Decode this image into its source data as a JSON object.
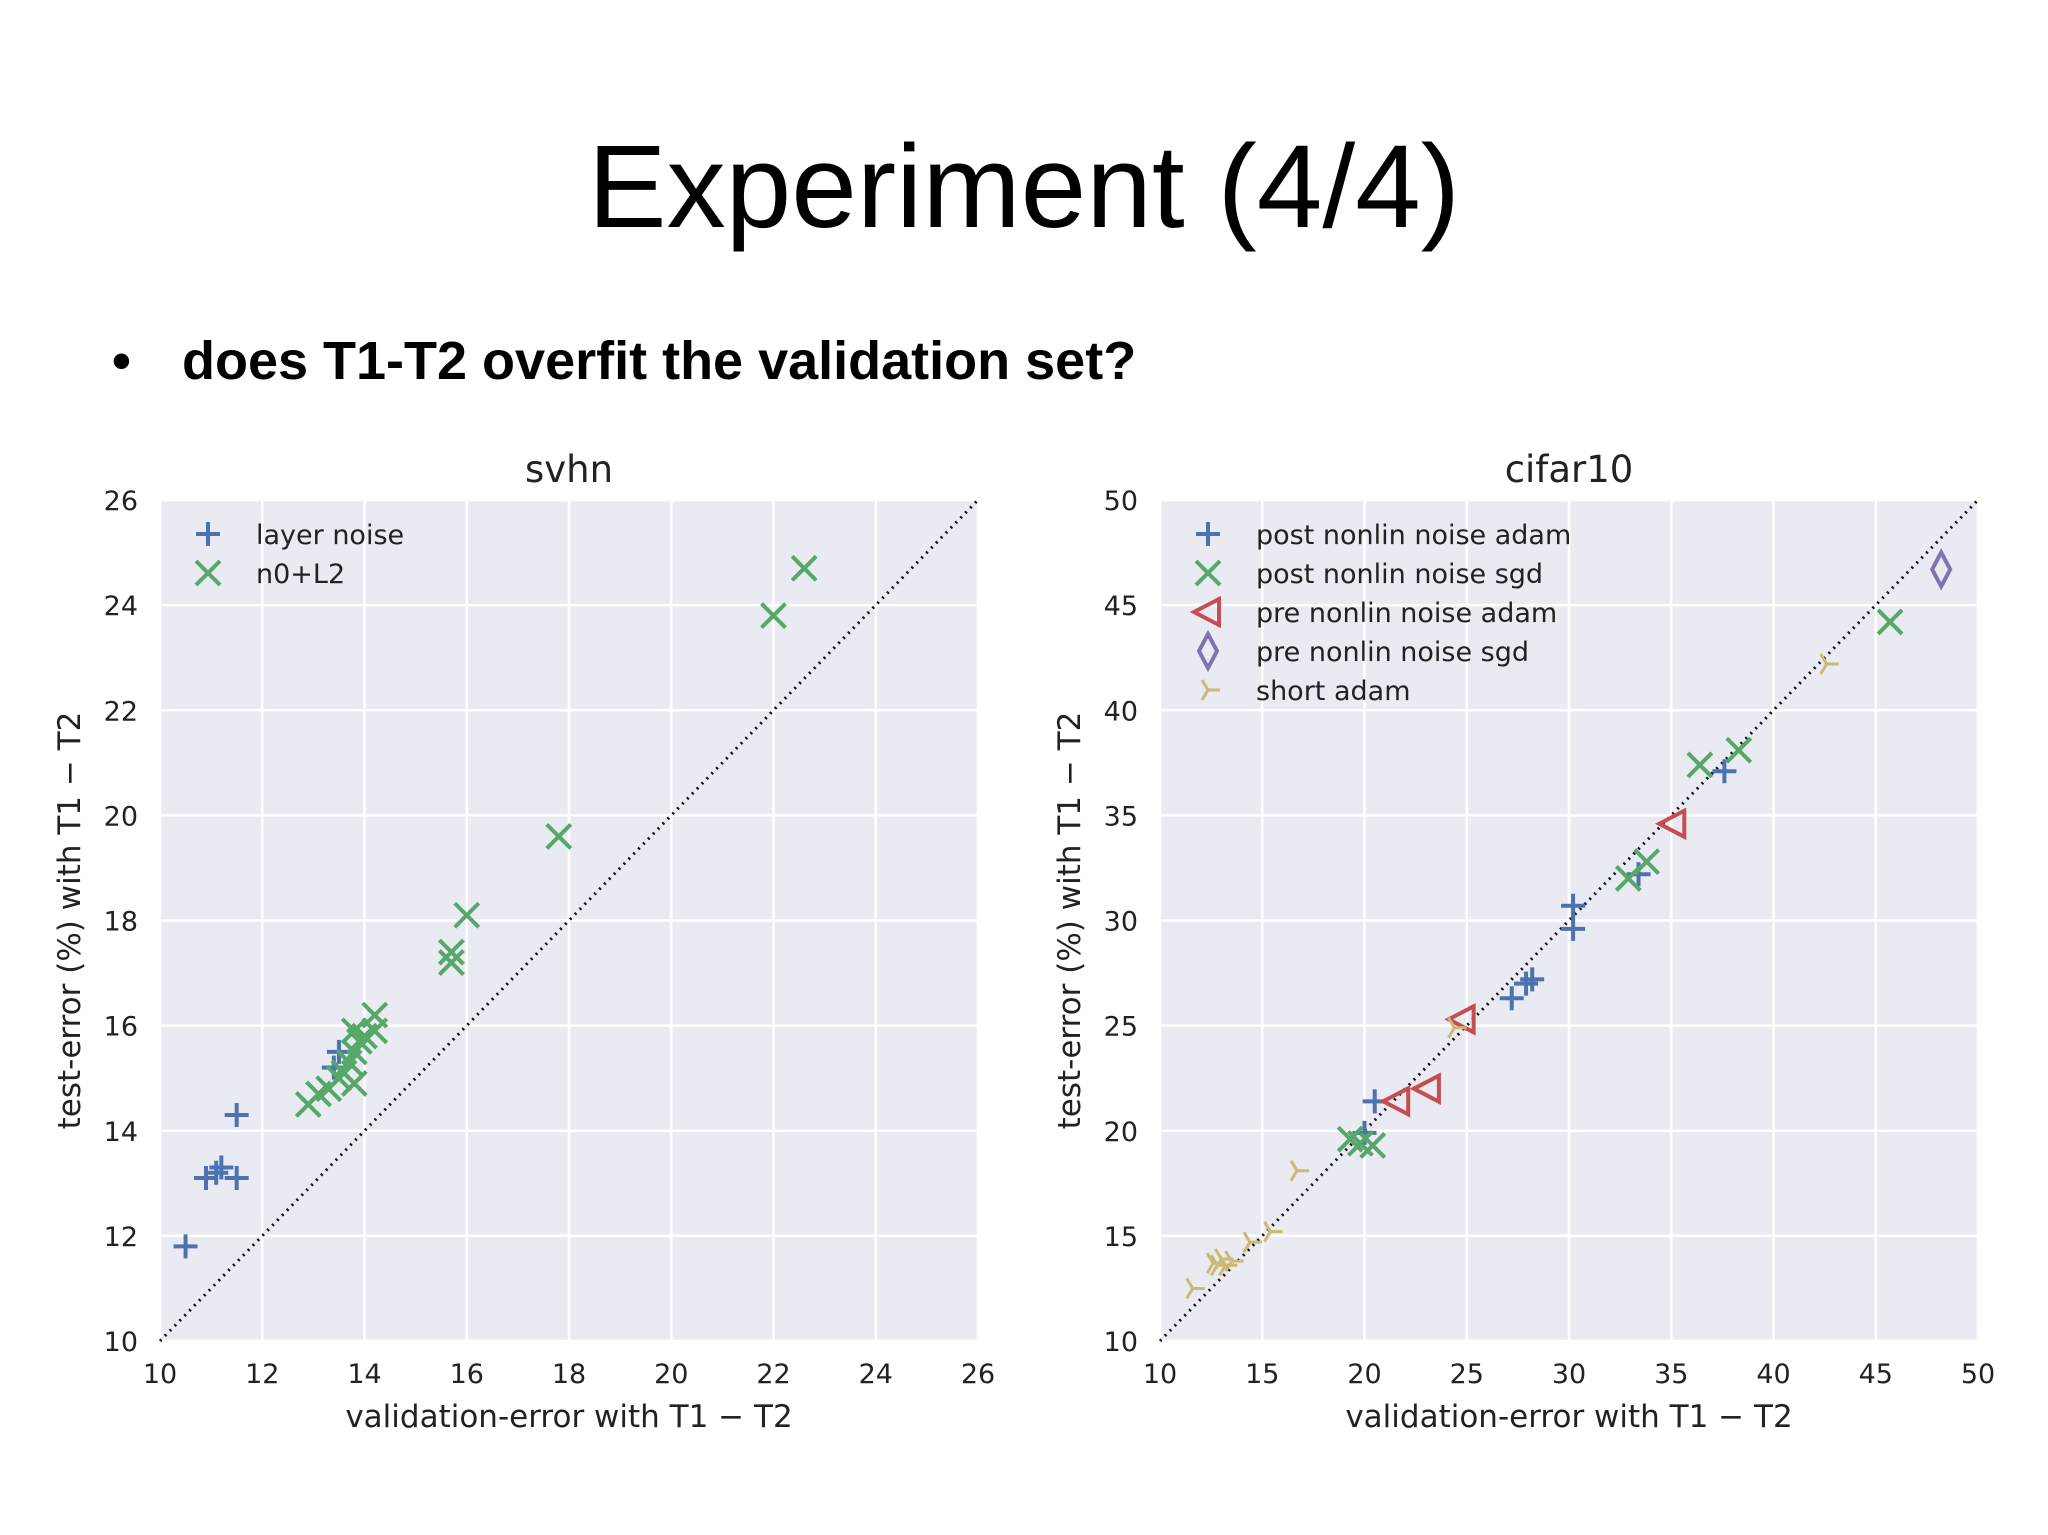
{
  "slide": {
    "title": "Experiment (4/4)",
    "bullet_symbol": "•",
    "bullet_text": "does T1-T2 overfit the validation set?"
  },
  "chart_data": [
    {
      "type": "scatter",
      "title": "svhn",
      "xlabel": "validation-error with T1 − T2",
      "ylabel": "test-error (%) with T1 − T2",
      "xlim": [
        10,
        26
      ],
      "ylim": [
        10,
        26
      ],
      "xticks": [
        10,
        12,
        14,
        16,
        18,
        20,
        22,
        24,
        26
      ],
      "yticks": [
        10,
        12,
        14,
        16,
        18,
        20,
        22,
        24,
        26
      ],
      "grid": true,
      "legend": "top-left",
      "diagonal": true,
      "series": [
        {
          "name": "layer noise",
          "marker": "plus",
          "color": "#4c72b0",
          "points": [
            [
              10.5,
              11.8
            ],
            [
              10.9,
              13.1
            ],
            [
              11.1,
              13.2
            ],
            [
              11.2,
              13.3
            ],
            [
              11.5,
              13.1
            ],
            [
              11.5,
              14.3
            ],
            [
              13.4,
              15.2
            ],
            [
              13.5,
              15.5
            ]
          ]
        },
        {
          "name": "n0+L2",
          "marker": "x",
          "color": "#55a868",
          "points": [
            [
              12.9,
              14.5
            ],
            [
              13.1,
              14.7
            ],
            [
              13.3,
              14.8
            ],
            [
              13.5,
              15.0
            ],
            [
              13.6,
              15.1
            ],
            [
              13.7,
              15.3
            ],
            [
              13.8,
              14.9
            ],
            [
              13.8,
              15.5
            ],
            [
              13.9,
              15.7
            ],
            [
              13.8,
              15.9
            ],
            [
              14.0,
              15.8
            ],
            [
              14.2,
              15.9
            ],
            [
              14.2,
              16.2
            ],
            [
              15.7,
              17.2
            ],
            [
              15.7,
              17.4
            ],
            [
              16.0,
              18.1
            ],
            [
              17.8,
              19.6
            ],
            [
              22.0,
              23.8
            ],
            [
              22.6,
              24.7
            ]
          ]
        }
      ]
    },
    {
      "type": "scatter",
      "title": "cifar10",
      "xlabel": "validation-error with T1 − T2",
      "ylabel": "test-error (%) with T1 − T2",
      "xlim": [
        10,
        50
      ],
      "ylim": [
        10,
        50
      ],
      "xticks": [
        10,
        15,
        20,
        25,
        30,
        35,
        40,
        45,
        50
      ],
      "yticks": [
        10,
        15,
        20,
        25,
        30,
        35,
        40,
        45,
        50
      ],
      "grid": true,
      "legend": "top-left",
      "diagonal": true,
      "series": [
        {
          "name": "post nonlin noise adam",
          "marker": "plus",
          "color": "#4c72b0",
          "points": [
            [
              20.5,
              21.4
            ],
            [
              20.0,
              19.9
            ],
            [
              27.2,
              26.3
            ],
            [
              27.9,
              27.0
            ],
            [
              28.2,
              27.2
            ],
            [
              30.2,
              29.6
            ],
            [
              30.2,
              30.7
            ],
            [
              33.4,
              32.2
            ],
            [
              37.6,
              37.1
            ]
          ]
        },
        {
          "name": "post nonlin noise sgd",
          "marker": "x",
          "color": "#55a868",
          "points": [
            [
              19.3,
              19.6
            ],
            [
              19.8,
              19.4
            ],
            [
              20.4,
              19.3
            ],
            [
              32.9,
              32.0
            ],
            [
              33.8,
              32.8
            ],
            [
              36.4,
              37.4
            ],
            [
              38.3,
              38.1
            ],
            [
              45.7,
              44.2
            ]
          ]
        },
        {
          "name": "pre nonlin noise adam",
          "marker": "triangle-left",
          "color": "#c44e52",
          "points": [
            [
              21.6,
              21.4
            ],
            [
              23.1,
              22.0
            ],
            [
              24.8,
              25.3
            ],
            [
              35.1,
              34.6
            ]
          ]
        },
        {
          "name": "pre nonlin noise sgd",
          "marker": "diamond",
          "color": "#8172b2",
          "points": [
            [
              48.2,
              46.7
            ]
          ]
        },
        {
          "name": "short adam",
          "marker": "tri",
          "color": "#ccb974",
          "points": [
            [
              11.6,
              12.5
            ],
            [
              12.6,
              13.7
            ],
            [
              12.8,
              13.6
            ],
            [
              13.0,
              13.9
            ],
            [
              13.2,
              13.6
            ],
            [
              13.5,
              13.8
            ],
            [
              14.4,
              14.7
            ],
            [
              15.4,
              15.2
            ],
            [
              16.7,
              18.1
            ],
            [
              24.4,
              24.9
            ],
            [
              42.6,
              42.2
            ]
          ]
        }
      ]
    }
  ]
}
